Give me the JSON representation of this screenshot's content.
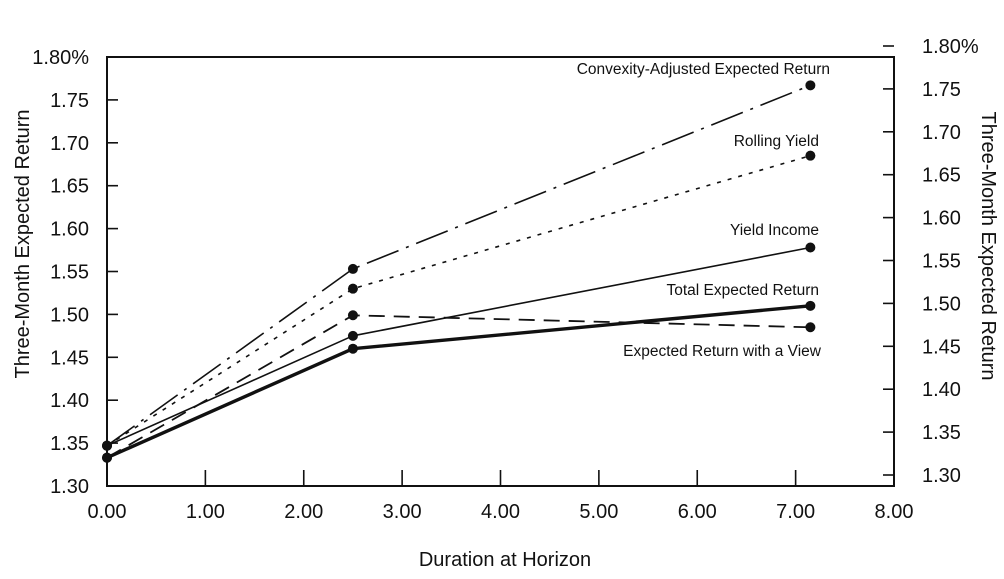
{
  "chart_data": {
    "type": "line",
    "xlabel": "Duration at Horizon",
    "ylabel_left": "Three-Month Expected Return",
    "ylabel_right": "Three-Month Expected Return",
    "xlim": [
      0,
      8
    ],
    "ylim": [
      1.3,
      1.8
    ],
    "x_ticks": [
      "0.00",
      "1.00",
      "2.00",
      "3.00",
      "4.00",
      "5.00",
      "6.00",
      "7.00",
      "8.00"
    ],
    "y_ticks": [
      "1.30",
      "1.35",
      "1.40",
      "1.45",
      "1.50",
      "1.55",
      "1.60",
      "1.65",
      "1.70",
      "1.75",
      "1.80%"
    ],
    "grid": false,
    "series": [
      {
        "name": "Convexity-Adjusted Expected Return",
        "style": "dash-dot",
        "points": [
          [
            0.0,
            1.347
          ],
          [
            2.5,
            1.553
          ],
          [
            7.15,
            1.767
          ]
        ]
      },
      {
        "name": "Rolling Yield",
        "style": "dotted",
        "points": [
          [
            0.0,
            1.347
          ],
          [
            2.5,
            1.53
          ],
          [
            7.15,
            1.685
          ]
        ]
      },
      {
        "name": "Yield Income",
        "style": "solid-thin",
        "points": [
          [
            0.0,
            1.347
          ],
          [
            2.5,
            1.475
          ],
          [
            7.15,
            1.578
          ]
        ]
      },
      {
        "name": "Total Expected Return",
        "style": "solid-thick",
        "points": [
          [
            0.0,
            1.333
          ],
          [
            2.5,
            1.46
          ],
          [
            7.15,
            1.51
          ]
        ]
      },
      {
        "name": "Expected Return with a View",
        "style": "dashed",
        "points": [
          [
            0.0,
            1.333
          ],
          [
            2.5,
            1.499
          ],
          [
            7.15,
            1.485
          ]
        ]
      }
    ]
  }
}
